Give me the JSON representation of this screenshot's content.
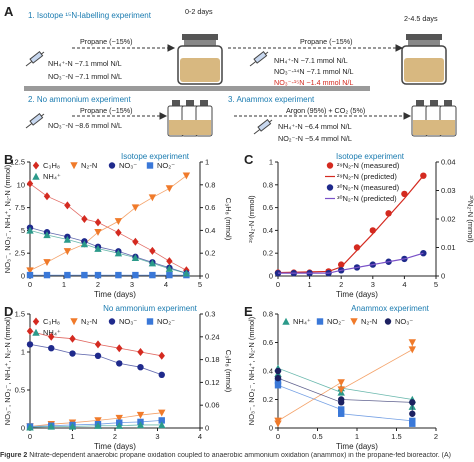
{
  "figure": {
    "panels": {
      "A": "A",
      "B": "B",
      "C": "C",
      "D": "D",
      "E": "E"
    },
    "caption": "Nitrate-dependent anaerobic propane oxidation coupled to anaerobic ammonium oxidation (anammox) in the propane-fed bioreactor. (A)",
    "caption_prefix": "Figure 2"
  },
  "panelA": {
    "step1": "1. Isotope ¹⁵N-labelling experiment",
    "days1": "0-2 days",
    "days2": "2-4.5 days",
    "propane1": "Propane (~15%)",
    "nh4_1": "NH₄⁺-N ~7.1 mmol N/L",
    "no3_1": "NO₃⁻-N ~7.1 mmol N/L",
    "propane2": "Propane (~15%)",
    "nh4_2": "NH₄⁺-N ~7.1 mmol N/L",
    "no3_14": "NO₃⁻-¹⁴N ~7.1 mmol N/L",
    "no3_15": "NO₃⁻-¹⁵N ~1.4 mmol N/L",
    "step2": "2. No ammonium experiment",
    "propane3": "Propane (~15%)",
    "no3_3": "NO₃⁻-N ~8.6 mmol N/L",
    "step3": "3. Anammox experiment",
    "argon": "Argon (95%) + CO₂ (5%)",
    "nh4_4": "NH₄⁺-N ~6.4 mmol N/L",
    "no2_4": "NO₂⁻-N ~5.4 mmol N/L"
  },
  "colors": {
    "red": "#d42a20",
    "orange": "#f07a2a",
    "blue": "#1f2a8c",
    "lightblue": "#3a78d8",
    "teal": "#2b9a8a",
    "darkblue": "#1c2060",
    "purple": "#7a52c8",
    "accent": "#1a7bb0"
  },
  "chart_data": [
    {
      "panel": "B",
      "type": "scatter",
      "title": "Isotope experiment",
      "xlabel": "Time (days)",
      "ylabel": "NO₃⁻, NO₂⁻, NH₄⁺, N₂-N (mmol)",
      "y2label": "C₃H₈ (mmol)",
      "xlim": [
        0,
        5
      ],
      "ylim": [
        0,
        12.5
      ],
      "y2lim": [
        0,
        1.0
      ],
      "xticks": [
        0,
        1,
        2,
        3,
        4,
        5
      ],
      "yticks": [
        0,
        2.5,
        5,
        7.5,
        10,
        12.5
      ],
      "y2ticks": [
        0,
        0.2,
        0.4,
        0.6,
        0.8,
        1.0
      ],
      "series": [
        {
          "name": "C₃H₈",
          "axis": "y2",
          "marker": "diamond",
          "color": "#d42a20",
          "x": [
            0,
            0.5,
            1.1,
            1.6,
            2.0,
            2.6,
            3.1,
            3.6,
            4.1,
            4.6
          ],
          "y": [
            0.81,
            0.7,
            0.62,
            0.5,
            0.47,
            0.38,
            0.3,
            0.22,
            0.13,
            0.05
          ]
        },
        {
          "name": "N₂-N",
          "axis": "y1",
          "marker": "triangle-down",
          "color": "#f07a2a",
          "x": [
            0,
            0.5,
            1.1,
            1.6,
            2.0,
            2.6,
            3.1,
            3.6,
            4.1,
            4.6
          ],
          "y": [
            0.6,
            1.5,
            2.7,
            3.5,
            4.8,
            6.0,
            7.5,
            8.6,
            9.6,
            11.0
          ]
        },
        {
          "name": "NO₃⁻",
          "axis": "y1",
          "marker": "circle",
          "color": "#1f2a8c",
          "x": [
            0,
            0.5,
            1.1,
            1.6,
            2.0,
            2.6,
            3.1,
            3.6,
            4.1,
            4.6
          ],
          "y": [
            5.3,
            4.8,
            4.3,
            3.8,
            3.2,
            2.7,
            2.1,
            1.5,
            0.9,
            0.3
          ]
        },
        {
          "name": "NO₂⁻",
          "axis": "y1",
          "marker": "square",
          "color": "#3a78d8",
          "x": [
            0,
            0.5,
            1.1,
            1.6,
            2.0,
            2.6,
            3.1,
            3.6,
            4.1,
            4.6
          ],
          "y": [
            0.1,
            0.1,
            0.1,
            0.1,
            0.1,
            0.1,
            0.1,
            0.1,
            0.1,
            0.1
          ]
        },
        {
          "name": "NH₄⁺",
          "axis": "y1",
          "marker": "triangle-up",
          "color": "#2b9a8a",
          "x": [
            0,
            0.5,
            1.1,
            1.6,
            2.0,
            2.6,
            3.1,
            3.6,
            4.1,
            4.6
          ],
          "y": [
            5.0,
            4.5,
            4.0,
            3.5,
            3.0,
            2.5,
            2.0,
            1.4,
            0.8,
            0.3
          ]
        }
      ]
    },
    {
      "panel": "C",
      "type": "scatter",
      "title": "Isotope experiment",
      "xlabel": "Time (days)",
      "ylabel": "²⁹N₂-N (mmol)",
      "y2label": "³⁰N₂-N (mmol)",
      "xlim": [
        0,
        5
      ],
      "ylim": [
        0,
        1.0
      ],
      "y2lim": [
        0,
        0.04
      ],
      "xticks": [
        0,
        1,
        2,
        3,
        4,
        5
      ],
      "yticks": [
        0,
        0.2,
        0.4,
        0.6,
        0.8,
        1.0
      ],
      "y2ticks": [
        0,
        0.01,
        0.02,
        0.03,
        0.04
      ],
      "series": [
        {
          "name": "²⁹N₂-N (measured)",
          "axis": "y1",
          "marker": "circle",
          "color": "#d42a20",
          "x": [
            0,
            0.5,
            1.0,
            1.6,
            2.0,
            2.5,
            3.0,
            3.5,
            4.0,
            4.6
          ],
          "y": [
            0.03,
            0.03,
            0.03,
            0.04,
            0.1,
            0.25,
            0.4,
            0.55,
            0.72,
            0.88
          ]
        },
        {
          "name": "²⁹N₂-N (predicted)",
          "axis": "y1",
          "marker": "line",
          "color": "#d42a20",
          "x": [
            0,
            1.6,
            2.0,
            3.0,
            4.0,
            4.6
          ],
          "y": [
            0.03,
            0.04,
            0.08,
            0.37,
            0.68,
            0.88
          ]
        },
        {
          "name": "³⁰N₂-N (measured)",
          "axis": "y2",
          "marker": "circle",
          "color": "#1f2a8c",
          "x": [
            0,
            0.5,
            1.0,
            1.6,
            2.0,
            2.5,
            3.0,
            3.5,
            4.0,
            4.6
          ],
          "y": [
            0.001,
            0.001,
            0.001,
            0.001,
            0.002,
            0.003,
            0.004,
            0.005,
            0.006,
            0.008
          ]
        },
        {
          "name": "³⁰N₂-N (predicted)",
          "axis": "y2",
          "marker": "line",
          "color": "#7a52c8",
          "x": [
            0,
            1.6,
            2.0,
            3.0,
            4.0,
            4.6
          ],
          "y": [
            0.001,
            0.001,
            0.002,
            0.004,
            0.006,
            0.008
          ]
        }
      ]
    },
    {
      "panel": "D",
      "type": "scatter",
      "title": "No ammonium experiment",
      "xlabel": "Time (days)",
      "ylabel": "NO₃⁻, NO₂⁻, NH₄⁺, N₂-N (mmol)",
      "y2label": "C₃H₈ (mmol)",
      "xlim": [
        0,
        4
      ],
      "ylim": [
        0,
        1.5
      ],
      "y2lim": [
        0,
        0.3
      ],
      "xticks": [
        0,
        1,
        2,
        3,
        4
      ],
      "yticks": [
        0,
        0.5,
        1.0,
        1.5
      ],
      "y2ticks": [
        0,
        0.06,
        0.12,
        0.18,
        0.24,
        0.3
      ],
      "series": [
        {
          "name": "C₃H₈",
          "axis": "y2",
          "marker": "diamond",
          "color": "#d42a20",
          "x": [
            0,
            0.5,
            1.0,
            1.6,
            2.1,
            2.6,
            3.1
          ],
          "y": [
            0.255,
            0.24,
            0.235,
            0.22,
            0.21,
            0.2,
            0.19
          ]
        },
        {
          "name": "N₂-N",
          "axis": "y1",
          "marker": "triangle-down",
          "color": "#f07a2a",
          "x": [
            0,
            0.5,
            1.0,
            1.6,
            2.1,
            2.6,
            3.1
          ],
          "y": [
            0.02,
            0.05,
            0.07,
            0.1,
            0.13,
            0.17,
            0.2
          ]
        },
        {
          "name": "NO₃⁻",
          "axis": "y1",
          "marker": "circle",
          "color": "#1f2a8c",
          "x": [
            0,
            0.5,
            1.0,
            1.6,
            2.1,
            2.6,
            3.1
          ],
          "y": [
            1.1,
            1.05,
            0.98,
            0.95,
            0.85,
            0.8,
            0.7
          ]
        },
        {
          "name": "NO₂⁻",
          "axis": "y1",
          "marker": "square",
          "color": "#3a78d8",
          "x": [
            0,
            0.5,
            1.0,
            1.6,
            2.1,
            2.6,
            3.1
          ],
          "y": [
            0.02,
            0.03,
            0.04,
            0.05,
            0.07,
            0.08,
            0.1
          ]
        },
        {
          "name": "NH₄⁺",
          "axis": "y1",
          "marker": "triangle-up",
          "color": "#2b9a8a",
          "x": [
            0,
            0.5,
            1.0,
            1.6,
            2.1,
            2.6,
            3.1
          ],
          "y": [
            0.01,
            0.02,
            0.02,
            0.03,
            0.03,
            0.04,
            0.04
          ]
        }
      ]
    },
    {
      "panel": "E",
      "type": "scatter",
      "title": "Anammox experiment",
      "xlabel": "Time (days)",
      "ylabel": "NO₃⁻, NO₂⁻, NH₄⁺, N₂-N (mmol)",
      "xlim": [
        0,
        2.0
      ],
      "ylim": [
        0,
        0.8
      ],
      "xticks": [
        0,
        0.5,
        1.0,
        1.5,
        2.0
      ],
      "yticks": [
        0,
        0.2,
        0.4,
        0.6,
        0.8
      ],
      "series": [
        {
          "name": "NH₄⁺",
          "marker": "triangle-up",
          "color": "#2b9a8a",
          "x": [
            0,
            0,
            0.8,
            0.8,
            1.7,
            1.7
          ],
          "y": [
            0.38,
            0.42,
            0.25,
            0.28,
            0.2,
            0.15
          ]
        },
        {
          "name": "NO₂⁻",
          "marker": "square",
          "color": "#3a78d8",
          "x": [
            0,
            0,
            0.8,
            0.8,
            1.7,
            1.7
          ],
          "y": [
            0.33,
            0.3,
            0.13,
            0.1,
            0.05,
            0.03
          ]
        },
        {
          "name": "N₂-N",
          "marker": "triangle-down",
          "color": "#f07a2a",
          "x": [
            0,
            0,
            0.8,
            0.8,
            1.7,
            1.7
          ],
          "y": [
            0.03,
            0.05,
            0.32,
            0.27,
            0.55,
            0.6
          ]
        },
        {
          "name": "NO₃⁻",
          "marker": "circle",
          "color": "#1c2060",
          "x": [
            0,
            0,
            0.8,
            0.8,
            1.7,
            1.7
          ],
          "y": [
            0.4,
            0.35,
            0.18,
            0.2,
            0.18,
            0.1
          ]
        }
      ]
    }
  ]
}
